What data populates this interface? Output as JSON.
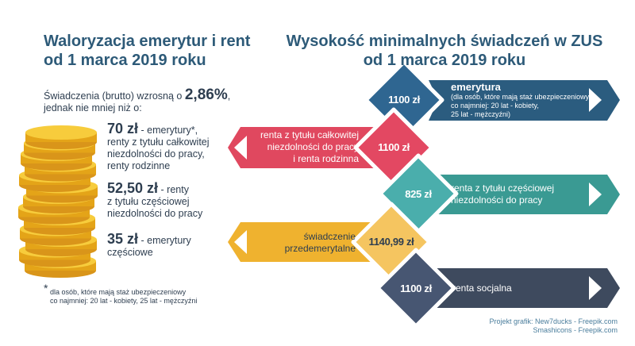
{
  "left": {
    "title_line1": "Waloryzacja emerytur i rent",
    "title_line2": "od 1 marca 2019 roku",
    "intro_prefix": "Świadczenia (brutto) wzrosną o ",
    "intro_percent": "2,86%",
    "intro_suffix": ",",
    "intro_line2": "jednak nie mniej niż o:",
    "items": [
      {
        "amount": "70 zł",
        "desc_first": " - emerytury*,",
        "desc_rest": [
          "renty z tytułu całkowitej",
          "niezdolności do pracy,",
          "renty rodzinne"
        ]
      },
      {
        "amount": "52,50 zł",
        "desc_first": " - renty",
        "desc_rest": [
          "z tytułu częściowej",
          "niezdolności do pracy"
        ]
      },
      {
        "amount": "35 zł",
        "desc_first": " - emerytury",
        "desc_rest": [
          "częściowe"
        ]
      }
    ],
    "footnote_mark": "*",
    "footnote_line1": "dla osób, które mają staż ubezpieczeniowy",
    "footnote_line2": "co najmniej: 20 lat - kobiety, 25 lat - mężczyźni"
  },
  "right": {
    "title_line1": "Wysokość minimalnych świadczeń w ZUS",
    "title_line2": "od 1 marca 2019 roku",
    "rows": [
      {
        "value": "1100 zł",
        "label": "emerytura",
        "note": [
          "(dla osób, które mają staż ubezpieczeniowy",
          "co najmniej: 20 lat - kobiety,",
          "25 lat - mężczyźni)"
        ],
        "color": "#2b5c7f",
        "diamond": "#2f6691"
      },
      {
        "value": "1100 zł",
        "label_lines": [
          "renta z tytułu całkowitej",
          "niezdolności do pracy",
          "i renta rodzinna"
        ],
        "color": "#e0485f",
        "diamond": "#e34862"
      },
      {
        "value": "825 zł",
        "label_lines": [
          "renta z tytułu częściowej",
          "niezdolności do pracy"
        ],
        "color": "#3a9a93",
        "diamond": "#4aaeac"
      },
      {
        "value": "1140,99 zł",
        "label_lines": [
          "świadczenie",
          "przedemerytalne"
        ],
        "color": "#efb22f",
        "diamond": "#f5c560"
      },
      {
        "value": "1100 zł",
        "label_lines": [
          "renta socjalna"
        ],
        "color": "#3e4a5e",
        "diamond": "#475672"
      }
    ]
  },
  "credits": {
    "line1": "Projekt grafik: New7ducks - Freepik.com",
    "line2": "Smashicons - Freepik.com"
  }
}
